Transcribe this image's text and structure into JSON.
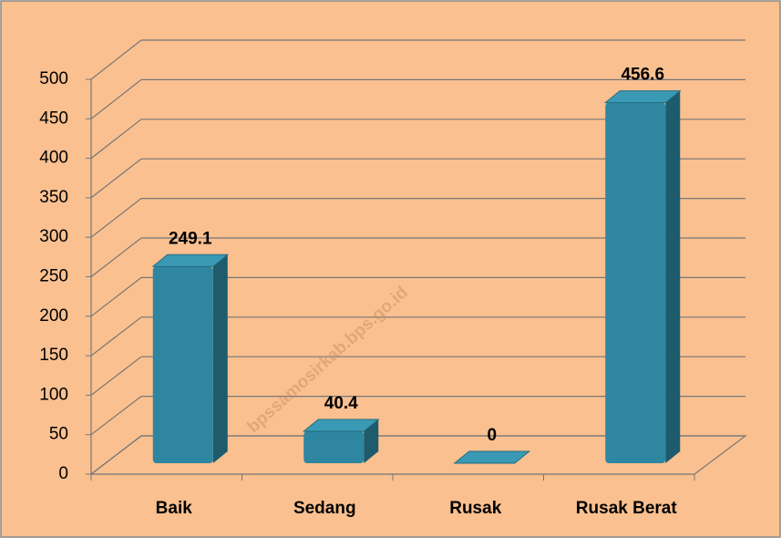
{
  "chart_data": {
    "type": "bar",
    "categories": [
      "Baik",
      "Sedang",
      "Rusak",
      "Rusak Berat"
    ],
    "values": [
      249.1,
      40.4,
      0,
      456.6
    ],
    "color": "#2e86a0",
    "ylim": [
      0,
      500
    ],
    "yticks": [
      0,
      50,
      100,
      150,
      200,
      250,
      300,
      350,
      400,
      450,
      500
    ],
    "grid": true,
    "watermark": "bpssamosirkab.bps.go.id"
  }
}
